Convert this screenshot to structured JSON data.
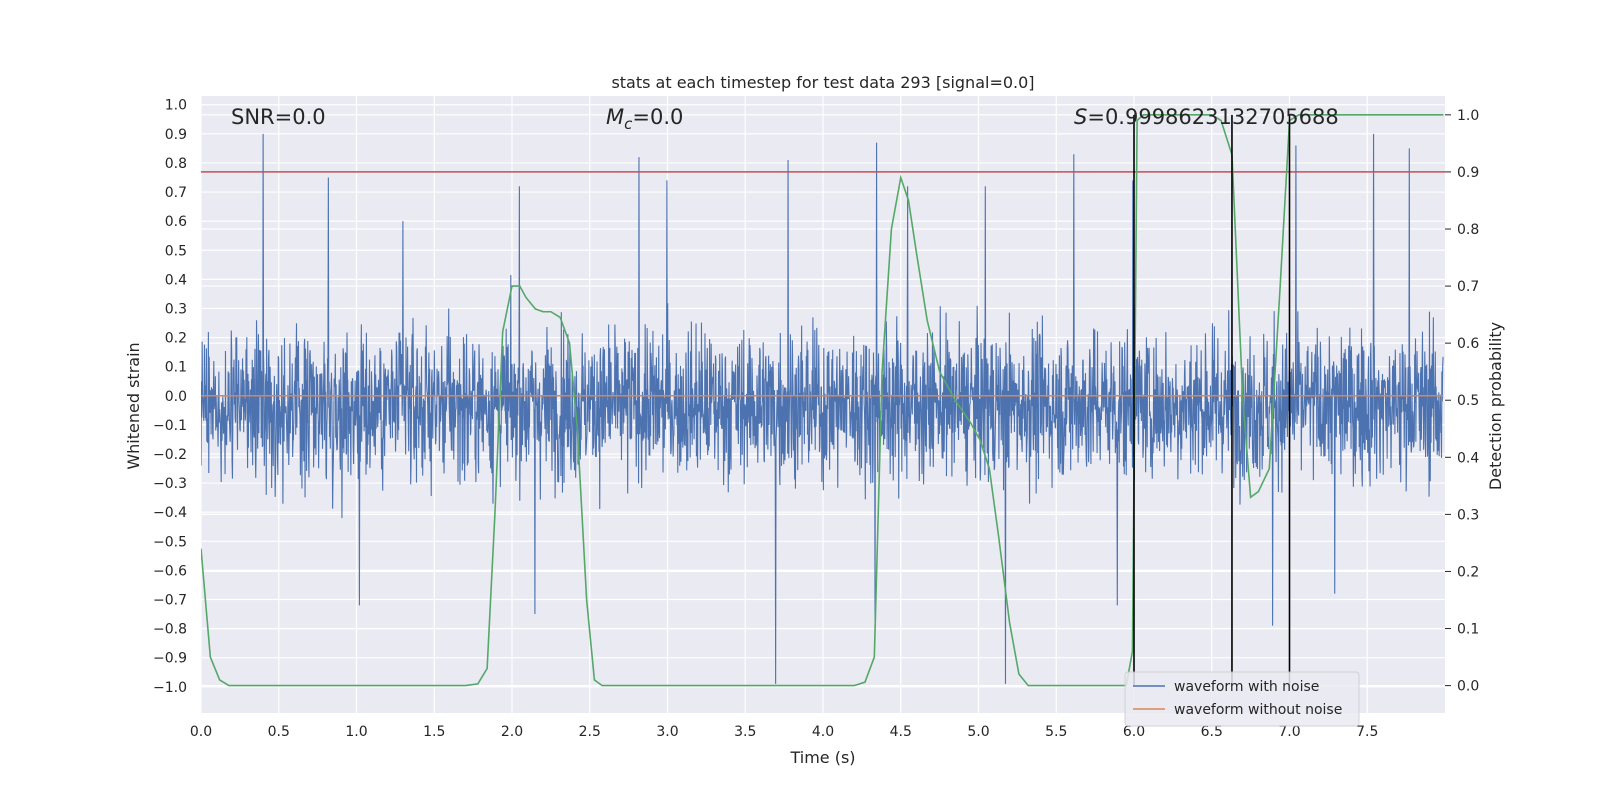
{
  "chart_data": {
    "type": "line",
    "title": "stats at each timestep for test data 293 [signal=0.0]",
    "xlabel": "Time (s)",
    "ylabel": "Whitened strain",
    "y2label": "Detection probability",
    "xlim": [
      0.0,
      8.0
    ],
    "ylim": [
      -1.09,
      1.03
    ],
    "y2lim": [
      -0.048,
      1.033
    ],
    "xticks": [
      "0.0",
      "0.5",
      "1.0",
      "1.5",
      "2.0",
      "2.5",
      "3.0",
      "3.5",
      "4.0",
      "4.5",
      "5.0",
      "5.5",
      "6.0",
      "6.5",
      "7.0",
      "7.5"
    ],
    "yticks": [
      "1.0",
      "0.9",
      "0.8",
      "0.7",
      "0.6",
      "0.5",
      "0.4",
      "0.3",
      "0.2",
      "0.1",
      "0.0",
      "-0.1",
      "-0.2",
      "-0.3",
      "-0.4",
      "-0.5",
      "-0.6",
      "-0.7",
      "-0.8",
      "-0.9",
      "-1.0"
    ],
    "y2ticks": [
      "1.0",
      "0.9",
      "0.8",
      "0.7",
      "0.6",
      "0.5",
      "0.4",
      "0.3",
      "0.2",
      "0.1",
      "0.0"
    ],
    "grid": true,
    "legend_position": "lower-right",
    "annotations": {
      "snr": "SNR=0.0",
      "mc_symbol": "M",
      "mc_subscript": "c",
      "mc_value": "=0.0",
      "s_symbol": "S",
      "s_value": "=0.9998623132705688"
    },
    "series": [
      {
        "name": "waveform with noise",
        "color": "#4c72b0",
        "kind": "noise",
        "typical_range": [
          -0.42,
          0.36
        ],
        "peaks": [
          {
            "x": 0.4,
            "y": 0.9
          },
          {
            "x": 0.82,
            "y": 0.75
          },
          {
            "x": 1.3,
            "y": 0.6
          },
          {
            "x": 2.05,
            "y": 0.72
          },
          {
            "x": 2.82,
            "y": 0.82
          },
          {
            "x": 3.0,
            "y": 0.74
          },
          {
            "x": 3.78,
            "y": 0.81
          },
          {
            "x": 4.35,
            "y": 0.87
          },
          {
            "x": 4.55,
            "y": 0.72
          },
          {
            "x": 5.05,
            "y": 0.72
          },
          {
            "x": 5.62,
            "y": 0.83
          },
          {
            "x": 6.0,
            "y": 0.74
          },
          {
            "x": 7.05,
            "y": 0.86
          },
          {
            "x": 7.55,
            "y": 0.9
          },
          {
            "x": 7.78,
            "y": 0.85
          }
        ],
        "troughs": [
          {
            "x": 1.02,
            "y": -0.72
          },
          {
            "x": 2.15,
            "y": -0.75
          },
          {
            "x": 3.7,
            "y": -0.99
          },
          {
            "x": 4.34,
            "y": -0.77
          },
          {
            "x": 5.18,
            "y": -0.99
          },
          {
            "x": 6.9,
            "y": -0.79
          },
          {
            "x": 5.9,
            "y": -0.72
          },
          {
            "x": 7.3,
            "y": -0.68
          }
        ]
      },
      {
        "name": "waveform without noise",
        "color": "#dd8452",
        "x": [
          0.0,
          7.99
        ],
        "y": [
          0.0,
          0.0
        ]
      },
      {
        "name": "detection probability",
        "axis": "y2",
        "color": "#55a868",
        "x": [
          0.0,
          0.06,
          0.12,
          0.18,
          0.25,
          0.35,
          0.5,
          1.0,
          1.5,
          1.7,
          1.78,
          1.84,
          1.89,
          1.94,
          2.0,
          2.05,
          2.09,
          2.15,
          2.2,
          2.25,
          2.31,
          2.37,
          2.42,
          2.48,
          2.53,
          2.58,
          2.64,
          2.69,
          3.0,
          3.5,
          4.0,
          4.2,
          4.27,
          4.33,
          4.38,
          4.44,
          4.5,
          4.55,
          4.6,
          4.67,
          4.75,
          4.85,
          4.95,
          5.01,
          5.07,
          5.13,
          5.2,
          5.26,
          5.32,
          5.39,
          5.45,
          5.5,
          5.9,
          5.95,
          5.99,
          6.02,
          6.06,
          6.2,
          6.5,
          6.56,
          6.63,
          6.7,
          6.75,
          6.8,
          6.87,
          6.94,
          7.0,
          7.06,
          7.15,
          7.5,
          7.99
        ],
        "y": [
          0.24,
          0.05,
          0.01,
          0.0,
          0.0,
          0.0,
          0.0,
          0.0,
          0.0,
          0.0,
          0.003,
          0.03,
          0.3,
          0.62,
          0.7,
          0.7,
          0.68,
          0.66,
          0.655,
          0.655,
          0.645,
          0.6,
          0.45,
          0.15,
          0.01,
          0.0,
          0.0,
          0.0,
          0.0,
          0.0,
          0.0,
          0.0,
          0.006,
          0.05,
          0.55,
          0.8,
          0.89,
          0.85,
          0.76,
          0.64,
          0.55,
          0.5,
          0.46,
          0.43,
          0.38,
          0.26,
          0.11,
          0.02,
          0.0,
          0.0,
          0.0,
          0.0,
          0.0,
          0.0,
          0.06,
          0.99,
          1.0,
          1.0,
          1.0,
          0.99,
          0.93,
          0.5,
          0.33,
          0.34,
          0.38,
          0.7,
          0.99,
          1.0,
          1.0,
          1.0,
          1.0
        ]
      }
    ],
    "hlines": [
      {
        "name": "threshold",
        "axis": "y2",
        "y": 0.9,
        "color": "#c44e52"
      }
    ],
    "vlines": [
      {
        "name": "event-marker",
        "x": 6.0,
        "ymin": 0.0,
        "ymax": 1.0,
        "color": "#000000"
      },
      {
        "name": "event-marker",
        "x": 6.63,
        "ymin": 0.0,
        "ymax": 1.0,
        "color": "#000000"
      },
      {
        "name": "event-marker",
        "x": 7.0,
        "ymin": 0.0,
        "ymax": 1.0,
        "color": "#000000"
      }
    ],
    "colors": {
      "background": "#eaeaf2",
      "grid": "#ffffff",
      "text": "#262626",
      "legend_background": "#eaeaf2",
      "legend_border": "#cccccc"
    }
  }
}
